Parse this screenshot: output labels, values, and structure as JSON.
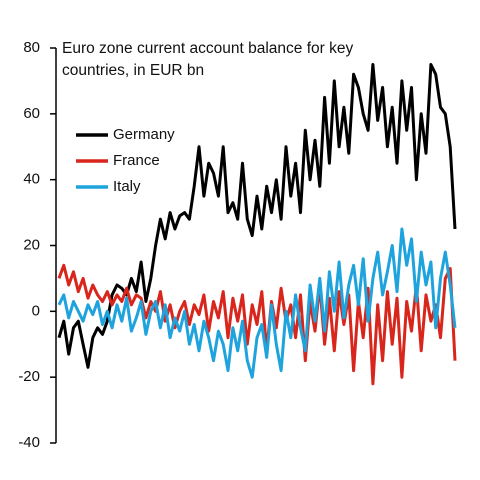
{
  "chart_data": {
    "type": "line",
    "title": "Euro zone current account balance for key countries, in EUR bn",
    "categories": [
      null,
      null,
      null,
      null,
      null,
      null,
      null,
      null,
      null,
      null,
      null,
      null,
      null,
      null,
      null,
      null,
      null,
      null,
      null,
      null,
      null,
      null,
      null,
      null,
      null,
      null,
      null,
      null,
      null,
      null,
      null,
      null,
      null,
      null,
      null,
      null,
      null,
      null,
      null,
      null,
      null,
      null,
      null,
      null,
      null,
      null,
      null,
      null,
      null,
      null,
      null,
      null,
      null,
      null,
      null,
      null,
      null,
      null,
      null,
      null,
      null,
      null,
      null,
      null,
      null,
      null,
      null,
      null,
      null,
      null,
      null,
      null,
      null,
      null,
      null,
      null,
      null,
      null,
      null,
      null,
      null,
      null,
      null
    ],
    "series": [
      {
        "name": "Germany",
        "color": "#000000",
        "values": [
          -8,
          -3,
          -13,
          -5,
          -3,
          -10,
          -17,
          -8,
          -5,
          -7,
          -3,
          5,
          8,
          7,
          5,
          10,
          6,
          15,
          3,
          10,
          20,
          28,
          22,
          30,
          25,
          29,
          30,
          28,
          38,
          50,
          35,
          45,
          42,
          35,
          50,
          30,
          33,
          28,
          45,
          28,
          23,
          35,
          25,
          38,
          30,
          40,
          28,
          50,
          35,
          45,
          30,
          55,
          40,
          52,
          38,
          65,
          45,
          70,
          50,
          62,
          48,
          72,
          68,
          60,
          55,
          75,
          58,
          68,
          50,
          62,
          45,
          70,
          55,
          68,
          40,
          60,
          48,
          75,
          72,
          62,
          60,
          50,
          25
        ]
      },
      {
        "name": "France",
        "color": "#d9261c",
        "values": [
          10,
          14,
          8,
          12,
          6,
          10,
          4,
          8,
          5,
          3,
          6,
          2,
          5,
          3,
          7,
          2,
          5,
          4,
          -2,
          3,
          0,
          6,
          -3,
          2,
          -5,
          0,
          3,
          -4,
          2,
          -1,
          5,
          -6,
          3,
          -2,
          6,
          -8,
          4,
          -3,
          5,
          -10,
          2,
          -4,
          6,
          -12,
          3,
          -5,
          7,
          -3,
          2,
          -8,
          5,
          -15,
          3,
          -6,
          8,
          -10,
          4,
          -12,
          6,
          -4,
          5,
          -18,
          3,
          -8,
          7,
          -22,
          2,
          -15,
          6,
          -10,
          4,
          -20,
          3,
          -6,
          8,
          -12,
          5,
          -3,
          2,
          -8,
          10,
          13,
          -15
        ]
      },
      {
        "name": "Italy",
        "color": "#1fa3dd",
        "values": [
          2,
          5,
          -2,
          3,
          0,
          -3,
          2,
          -1,
          3,
          -4,
          0,
          -5,
          2,
          -3,
          4,
          -6,
          -2,
          3,
          -7,
          0,
          3,
          -5,
          2,
          -8,
          -2,
          -6,
          0,
          -10,
          -4,
          -12,
          -3,
          -8,
          -15,
          -6,
          -10,
          -18,
          -5,
          -12,
          -3,
          -15,
          -20,
          -8,
          -4,
          -14,
          2,
          -10,
          -18,
          0,
          -8,
          5,
          -5,
          -12,
          8,
          -3,
          10,
          -6,
          12,
          0,
          15,
          -2,
          8,
          14,
          2,
          16,
          -3,
          10,
          18,
          5,
          12,
          20,
          6,
          25,
          14,
          22,
          3,
          18,
          8,
          15,
          -5,
          10,
          18,
          8,
          -5
        ]
      }
    ],
    "ylim": [
      -40,
      80
    ],
    "yticks": [
      -40,
      -20,
      0,
      20,
      40,
      60,
      80
    ]
  }
}
